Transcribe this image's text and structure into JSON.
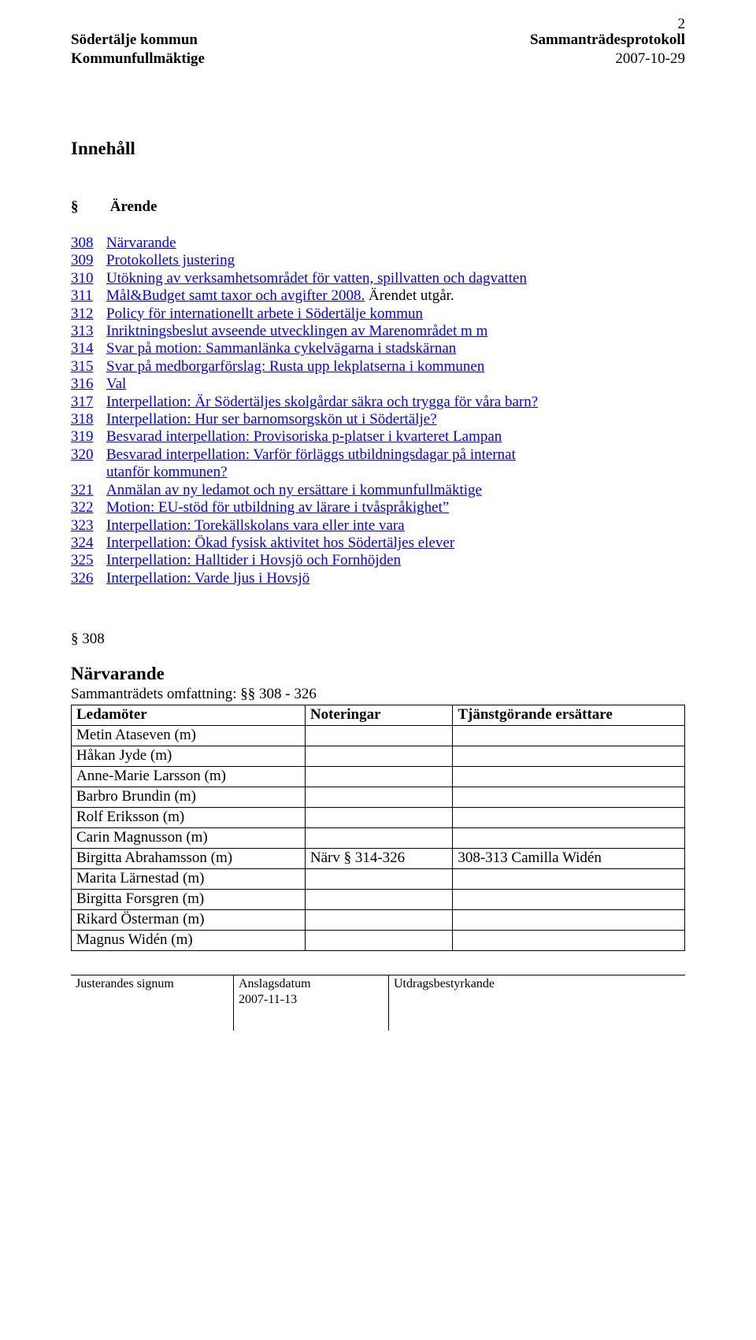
{
  "page_number": "2",
  "header": {
    "org": "Södertälje kommun",
    "body": "Kommunfullmäktige",
    "doc_title": "Sammanträdesprotokoll",
    "date": "2007-10-29"
  },
  "headings": {
    "innehall": "Innehåll",
    "arende_sym": "§",
    "arende": "Ärende"
  },
  "toc": [
    {
      "num": "308",
      "title": "Närvarande"
    },
    {
      "num": "309",
      "title": "Protokollets justering"
    },
    {
      "num": "310",
      "title": "Utökning av verksamhetsområdet för vatten, spillvatten och dagvatten"
    },
    {
      "num": "311",
      "title": "Mål&Budget samt taxor och avgifter 2008. Ärendet utgår.",
      "last_plain": true
    },
    {
      "num": "312",
      "title": "Policy för internationellt arbete i Södertälje kommun"
    },
    {
      "num": "313",
      "title": "Inriktningsbeslut avseende utvecklingen av Marenområdet m m"
    },
    {
      "num": "314",
      "title": "Svar på motion: Sammanlänka cykelvägarna i stadskärnan"
    },
    {
      "num": "315",
      "title": "Svar på medborgarförslag: Rusta upp lekplatserna i kommunen"
    },
    {
      "num": "316",
      "title": "Val"
    },
    {
      "num": "317",
      "title": "Interpellation: Är Södertäljes skolgårdar säkra och trygga för våra barn?"
    },
    {
      "num": "318",
      "title": "Interpellation: Hur ser barnomsorgskön ut i Södertälje?"
    },
    {
      "num": "319",
      "title": "Besvarad interpellation: Provisoriska p-platser i kvarteret Lampan"
    },
    {
      "num": "320",
      "title": "Besvarad interpellation: Varför förläggs utbildningsdagar på internat",
      "cont": "utanför kommunen?"
    },
    {
      "num": "321",
      "title": "Anmälan av ny ledamot och ny ersättare i kommunfullmäktige"
    },
    {
      "num": "322",
      "title": "Motion: EU-stöd för utbildning av lärare i tvåspråkighet”"
    },
    {
      "num": "323",
      "title": "Interpellation: Torekällskolans vara eller inte vara"
    },
    {
      "num": "324",
      "title": "Interpellation: Ökad fysisk aktivitet hos Södertäljes elever"
    },
    {
      "num": "325",
      "title": "Interpellation: Halltider i Hovsjö och Fornhöjden"
    },
    {
      "num": "326",
      "title": "Interpellation: Varde ljus i Hovsjö"
    }
  ],
  "section": {
    "num": "§ 308",
    "title": "Närvarande",
    "subtitle": "Sammanträdets omfattning: §§ 308 - 326"
  },
  "table": {
    "headers": [
      "Ledamöter",
      "Noteringar",
      "Tjänstgörande ersättare"
    ],
    "rows": [
      [
        "Metin Ataseven (m)",
        "",
        ""
      ],
      [
        "Håkan Jyde (m)",
        "",
        ""
      ],
      [
        "Anne-Marie Larsson (m)",
        "",
        ""
      ],
      [
        "Barbro Brundin (m)",
        "",
        ""
      ],
      [
        "Rolf Eriksson (m)",
        "",
        ""
      ],
      [
        "Carin Magnusson (m)",
        "",
        ""
      ],
      [
        "Birgitta Abrahamsson (m)",
        "Närv § 314-326",
        "308-313 Camilla Widén"
      ],
      [
        "Marita Lärnestad (m)",
        "",
        ""
      ],
      [
        "Birgitta Forsgren (m)",
        "",
        ""
      ],
      [
        "Rikard Österman (m)",
        "",
        ""
      ],
      [
        "Magnus Widén (m)",
        "",
        ""
      ]
    ]
  },
  "footer": {
    "c1": "Justerandes signum",
    "c2": "Anslagsdatum",
    "c2_date": "2007-11-13",
    "c3": "Utdragsbestyrkande"
  }
}
